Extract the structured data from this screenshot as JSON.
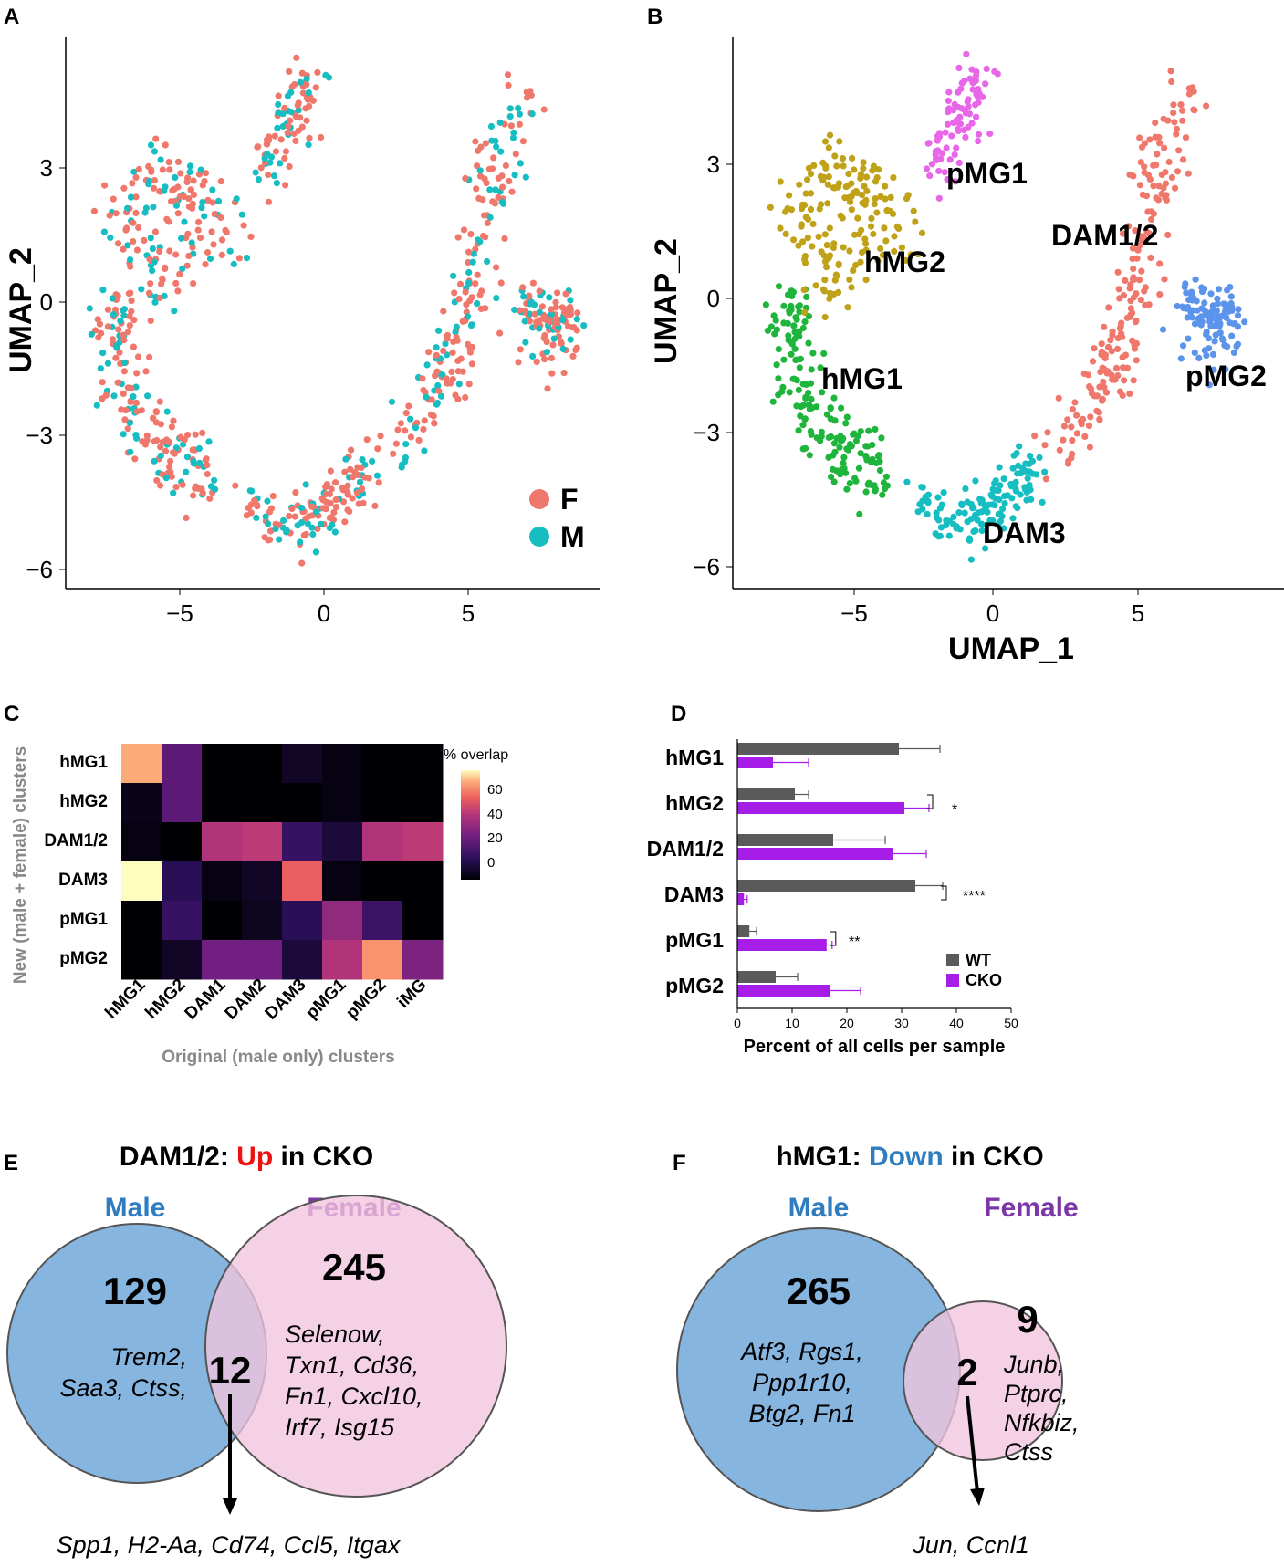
{
  "panels": {
    "A": "A",
    "B": "B",
    "C": "C",
    "D": "D",
    "E": "E",
    "F": "F"
  },
  "umap": {
    "xlabel": "UMAP_1",
    "ylabel": "UMAP_2",
    "xticks": [
      "−5",
      "0",
      "5"
    ],
    "yticks": [
      "3",
      "0",
      "−3",
      "−6"
    ],
    "legend": [
      {
        "label": "F",
        "color": "#F0776C"
      },
      {
        "label": "M",
        "color": "#16BEC2"
      }
    ],
    "clusters": [
      {
        "label": "pMG1",
        "color": "#E866E8"
      },
      {
        "label": "hMG2",
        "color": "#C0A218"
      },
      {
        "label": "DAM1/2",
        "color": "#F0776C"
      },
      {
        "label": "hMG1",
        "color": "#1FB53C"
      },
      {
        "label": "pMG2",
        "color": "#5C94EC"
      },
      {
        "label": "DAM3",
        "color": "#16BEC2"
      }
    ]
  },
  "chart_data": [
    {
      "type": "heatmap",
      "title": "% overlap",
      "ylabel": "New (male + female) clusters",
      "xlabel": "Original (male only) clusters",
      "rows": [
        "hMG1",
        "hMG2",
        "DAM1/2",
        "DAM3",
        "pMG1",
        "pMG2"
      ],
      "cols": [
        "hMG1",
        "hMG2",
        "DAM1",
        "DAM2",
        "DAM3",
        "pMG1",
        "pMG2",
        "iMG"
      ],
      "values": [
        [
          58,
          22,
          0,
          0,
          5,
          2,
          0,
          0
        ],
        [
          3,
          22,
          0,
          0,
          0,
          2,
          0,
          0
        ],
        [
          2,
          0,
          38,
          40,
          15,
          8,
          38,
          40
        ],
        [
          65,
          12,
          2,
          5,
          48,
          2,
          0,
          0
        ],
        [
          0,
          15,
          0,
          4,
          12,
          32,
          16,
          0
        ],
        [
          0,
          5,
          26,
          26,
          8,
          38,
          55,
          28
        ]
      ],
      "legend_ticks": [
        "60",
        "40",
        "20",
        "0"
      ],
      "range": [
        0,
        65
      ]
    },
    {
      "type": "bar",
      "orientation": "horizontal",
      "xlabel": "Percent of all cells per sample",
      "categories": [
        "hMG1",
        "hMG2",
        "DAM1/2",
        "DAM3",
        "pMG1",
        "pMG2"
      ],
      "xlim": [
        0,
        50
      ],
      "xticks": [
        "0",
        "10",
        "20",
        "30",
        "40",
        "50"
      ],
      "series": [
        {
          "name": "WT",
          "color": "#5A5A5A",
          "values": [
            29.5,
            10.5,
            17.5,
            32.5,
            2.2,
            7
          ],
          "errors": [
            7.5,
            2.5,
            9.5,
            5,
            1.3,
            4
          ]
        },
        {
          "name": "CKO",
          "color": "#A61DE8",
          "values": [
            6.5,
            30.5,
            28.5,
            1.2,
            16.3,
            17
          ],
          "errors": [
            6.5,
            4.5,
            6,
            0.6,
            1,
            5.5
          ]
        }
      ],
      "significance": [
        {
          "category": "hMG2",
          "label": "*"
        },
        {
          "category": "DAM3",
          "label": "****"
        },
        {
          "category": "pMG1",
          "label": "**"
        }
      ]
    }
  ],
  "vennE": {
    "title_pre": "DAM1/2: ",
    "title_hl": "Up",
    "title_post": " in CKO",
    "male": "Male",
    "female": "Female",
    "male_count": "129",
    "overlap_count": "12",
    "female_count": "245",
    "male_genes": [
      "Trem2,",
      "Saa3, Ctss,"
    ],
    "female_genes": [
      "Selenow,",
      "Txn1, Cd36,",
      "Fn1, Cxcl10,",
      "Irf7, Isg15"
    ],
    "overlap_genes": "Spp1, H2-Aa, Cd74, Ccl5, Itgax"
  },
  "vennF": {
    "title_pre": "hMG1: ",
    "title_hl": "Down",
    "title_post": " in CKO",
    "male": "Male",
    "female": "Female",
    "male_count": "265",
    "overlap_count": "2",
    "female_count": "9",
    "male_genes": [
      "Atf3, Rgs1,",
      "Ppp1r10,",
      "Btg2, Fn1"
    ],
    "female_genes": [
      "Junb,",
      "Ptprc,",
      "Nfkbiz,",
      "Ctss"
    ],
    "overlap_genes": "Jun, Ccnl1"
  },
  "colors": {
    "up": "#EE1111",
    "down": "#2F7CC1",
    "male": "#2F7CC1",
    "female": "#7B36A8",
    "male_circle": "#7FB2DE",
    "female_circle": "#F2C4DE",
    "heat_low": "#000004",
    "heat_high": "#FCFDBF"
  }
}
